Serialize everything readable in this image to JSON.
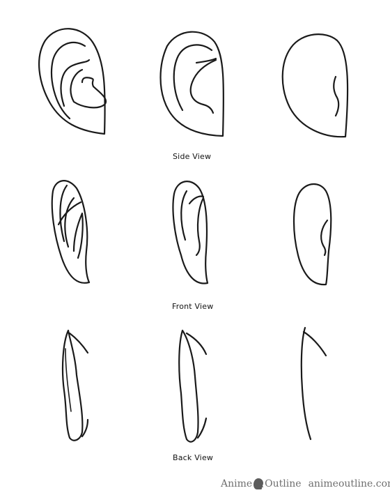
{
  "captions": {
    "side": "Side View",
    "front": "Front View",
    "back": "Back View"
  },
  "watermark": {
    "brand_left": "Anime",
    "brand_right": "Outline",
    "url": "animeoutline.com",
    "logo_icon": "head-silhouette-icon",
    "color": "#6f6f6f"
  },
  "colors": {
    "line": "#1a1a1a",
    "background": "#ffffff"
  }
}
